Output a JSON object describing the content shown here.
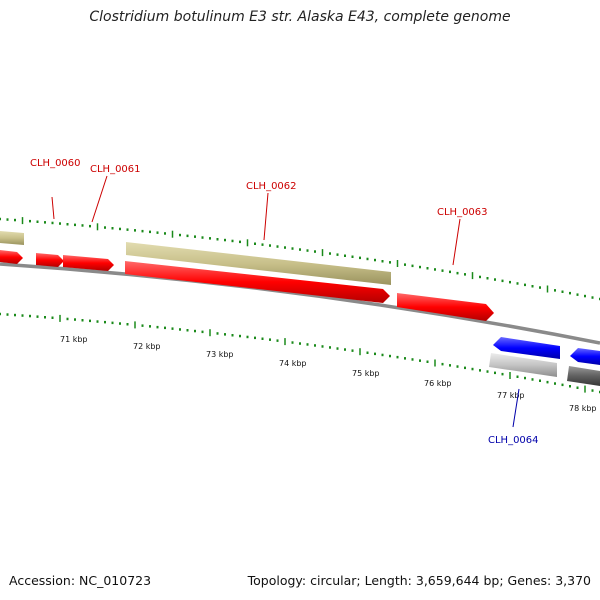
{
  "title": "Clostridium botulinum E3 str. Alaska E43, complete genome",
  "footer": {
    "accession": "Accession: NC_010723",
    "stats": "Topology: circular; Length: 3,659,644 bp; Genes: 3,370"
  },
  "colors": {
    "forward_cds": "#ff0000",
    "reverse_cds": "#0000ff",
    "forward_feature": "#c8c08a",
    "reverse_feature_light": "#c4c4c4",
    "reverse_feature_dark": "#606060",
    "backbone": "#808080",
    "tick": "#1a8a1a",
    "forward_label": "#cc0000",
    "reverse_label": "#0000aa"
  },
  "kbp_ticks": [
    {
      "label": "71 kbp"
    },
    {
      "label": "72 kbp"
    },
    {
      "label": "73 kbp"
    },
    {
      "label": "74 kbp"
    },
    {
      "label": "75 kbp"
    },
    {
      "label": "76 kbp"
    },
    {
      "label": "77 kbp"
    },
    {
      "label": "78 kbp"
    }
  ],
  "genes": [
    {
      "name": "CLH_0060",
      "strand": "forward"
    },
    {
      "name": "CLH_0061",
      "strand": "forward"
    },
    {
      "name": "CLH_0062",
      "strand": "forward"
    },
    {
      "name": "CLH_0063",
      "strand": "forward"
    },
    {
      "name": "CLH_0064",
      "strand": "reverse"
    }
  ]
}
